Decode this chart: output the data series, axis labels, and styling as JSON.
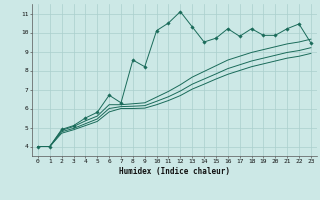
{
  "xlabel": "Humidex (Indice chaleur)",
  "xlim": [
    -0.5,
    23.5
  ],
  "ylim": [
    3.5,
    11.5
  ],
  "xticks": [
    0,
    1,
    2,
    3,
    4,
    5,
    6,
    7,
    8,
    9,
    10,
    11,
    12,
    13,
    14,
    15,
    16,
    17,
    18,
    19,
    20,
    21,
    22,
    23
  ],
  "yticks": [
    4,
    5,
    6,
    7,
    8,
    9,
    10,
    11
  ],
  "bg_color": "#cce8e6",
  "grid_color": "#aacfcd",
  "line_color": "#1a6b5a",
  "series1_x": [
    0,
    1,
    2,
    3,
    4,
    5,
    6,
    7,
    8,
    9,
    10,
    11,
    12,
    13,
    14,
    15,
    16,
    17,
    18,
    19,
    20,
    21,
    22,
    23
  ],
  "series1_y": [
    4.0,
    4.0,
    4.9,
    5.1,
    5.5,
    5.8,
    6.7,
    6.3,
    8.55,
    8.2,
    10.1,
    10.5,
    11.1,
    10.3,
    9.5,
    9.7,
    10.2,
    9.8,
    10.2,
    9.85,
    9.85,
    10.2,
    10.45,
    9.45
  ],
  "series2_x": [
    0,
    1,
    2,
    3,
    4,
    5,
    6,
    7,
    8,
    9,
    10,
    11,
    12,
    13,
    14,
    15,
    16,
    17,
    18,
    19,
    20,
    21,
    22,
    23
  ],
  "series2_y": [
    4.0,
    4.0,
    4.85,
    5.05,
    5.35,
    5.6,
    6.2,
    6.2,
    6.25,
    6.3,
    6.6,
    6.9,
    7.25,
    7.65,
    7.95,
    8.25,
    8.55,
    8.75,
    8.95,
    9.1,
    9.25,
    9.4,
    9.5,
    9.65
  ],
  "series3_x": [
    0,
    1,
    2,
    3,
    4,
    5,
    6,
    7,
    8,
    9,
    10,
    11,
    12,
    13,
    14,
    15,
    16,
    17,
    18,
    19,
    20,
    21,
    22,
    23
  ],
  "series3_y": [
    4.0,
    4.0,
    4.78,
    4.95,
    5.2,
    5.45,
    6.0,
    6.1,
    6.12,
    6.15,
    6.38,
    6.62,
    6.92,
    7.28,
    7.55,
    7.82,
    8.1,
    8.3,
    8.5,
    8.65,
    8.8,
    8.95,
    9.05,
    9.2
  ],
  "series4_x": [
    0,
    1,
    2,
    3,
    4,
    5,
    6,
    7,
    8,
    9,
    10,
    11,
    12,
    13,
    14,
    15,
    16,
    17,
    18,
    19,
    20,
    21,
    22,
    23
  ],
  "series4_y": [
    4.0,
    4.0,
    4.7,
    4.88,
    5.1,
    5.32,
    5.82,
    6.0,
    6.0,
    6.02,
    6.2,
    6.42,
    6.68,
    7.02,
    7.28,
    7.55,
    7.8,
    8.0,
    8.2,
    8.35,
    8.5,
    8.65,
    8.75,
    8.9
  ]
}
